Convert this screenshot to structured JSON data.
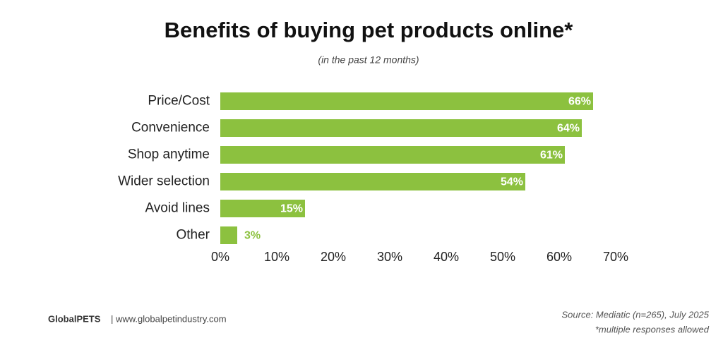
{
  "chart_data": {
    "type": "bar",
    "orientation": "horizontal",
    "title": "Benefits of buying pet products online*",
    "subtitle": "(in the past 12 months)",
    "categories": [
      "Price/Cost",
      "Convenience",
      "Shop anytime",
      "Wider selection",
      "Avoid lines",
      "Other"
    ],
    "values": [
      66,
      64,
      61,
      54,
      15,
      3
    ],
    "value_labels": [
      "66%",
      "64%",
      "61%",
      "54%",
      "15%",
      "3%"
    ],
    "color": "#8cc13f",
    "xlim": [
      0,
      70
    ],
    "xticks": [
      {
        "value": 0,
        "label": "0%"
      },
      {
        "value": 10,
        "label": "10%"
      },
      {
        "value": 20,
        "label": "20%"
      },
      {
        "value": 30,
        "label": "30%"
      },
      {
        "value": 40,
        "label": "40%"
      },
      {
        "value": 50,
        "label": "50%"
      },
      {
        "value": 60,
        "label": "60%"
      },
      {
        "value": 70,
        "label": "70%"
      }
    ],
    "grid": false,
    "brand": "GlobalPETS",
    "website": "| www.globalpetindustry.com",
    "source": "Source: Mediatic (n=265), July 2025",
    "note": "*multiple responses allowed"
  }
}
